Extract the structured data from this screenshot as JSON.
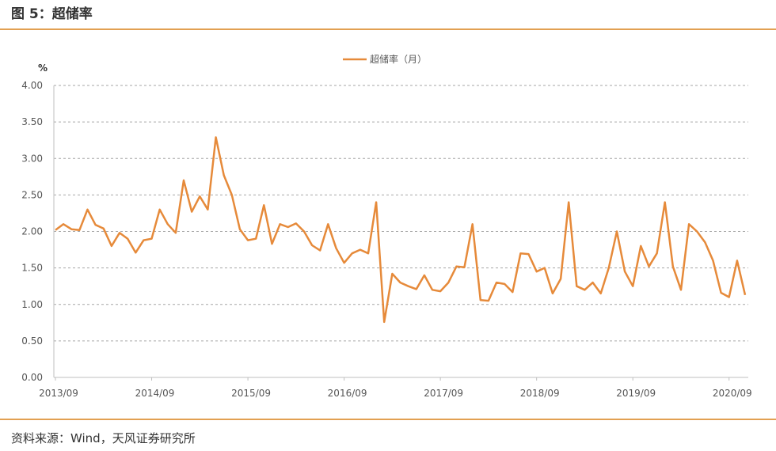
{
  "header": {
    "title": "图 5：超储率"
  },
  "footer": {
    "source": "资料来源：Wind，天风证券研究所"
  },
  "colors": {
    "series": "#e68a3a",
    "rule": "#e2a052",
    "grid": "#a6a6a6"
  },
  "chart_data": {
    "type": "line",
    "unit_label": "%",
    "ylim": [
      0,
      4
    ],
    "yticks": [
      "0.00",
      "0.50",
      "1.00",
      "1.50",
      "2.00",
      "2.50",
      "3.00",
      "3.50",
      "4.00"
    ],
    "xtick_labels": [
      "2013/09",
      "2014/09",
      "2015/09",
      "2016/09",
      "2017/09",
      "2018/09",
      "2019/09",
      "2020/09"
    ],
    "grid": true,
    "legend_position": "top-center",
    "series": [
      {
        "name": "超储率（月）",
        "start": "2013/09",
        "values": [
          2.02,
          2.1,
          2.03,
          2.02,
          2.3,
          2.09,
          2.04,
          1.8,
          1.98,
          1.9,
          1.71,
          1.88,
          1.9,
          2.3,
          2.1,
          1.98,
          2.7,
          2.27,
          2.48,
          2.3,
          3.29,
          2.77,
          2.5,
          2.03,
          1.88,
          1.9,
          2.36,
          1.83,
          2.1,
          2.06,
          2.11,
          2.0,
          1.81,
          1.74,
          2.1,
          1.77,
          1.57,
          1.7,
          1.75,
          1.7,
          2.4,
          0.76,
          1.42,
          1.3,
          1.25,
          1.21,
          1.4,
          1.2,
          1.18,
          1.3,
          1.52,
          1.51,
          2.1,
          1.06,
          1.05,
          1.3,
          1.28,
          1.17,
          1.7,
          1.69,
          1.45,
          1.5,
          1.15,
          1.35,
          2.4,
          1.25,
          1.2,
          1.3,
          1.15,
          1.5,
          2.0,
          1.45,
          1.25,
          1.8,
          1.52,
          1.7,
          2.4,
          1.52,
          1.2,
          2.1,
          2.0,
          1.85,
          1.6,
          1.16,
          1.1,
          1.6,
          1.13
        ]
      }
    ]
  }
}
